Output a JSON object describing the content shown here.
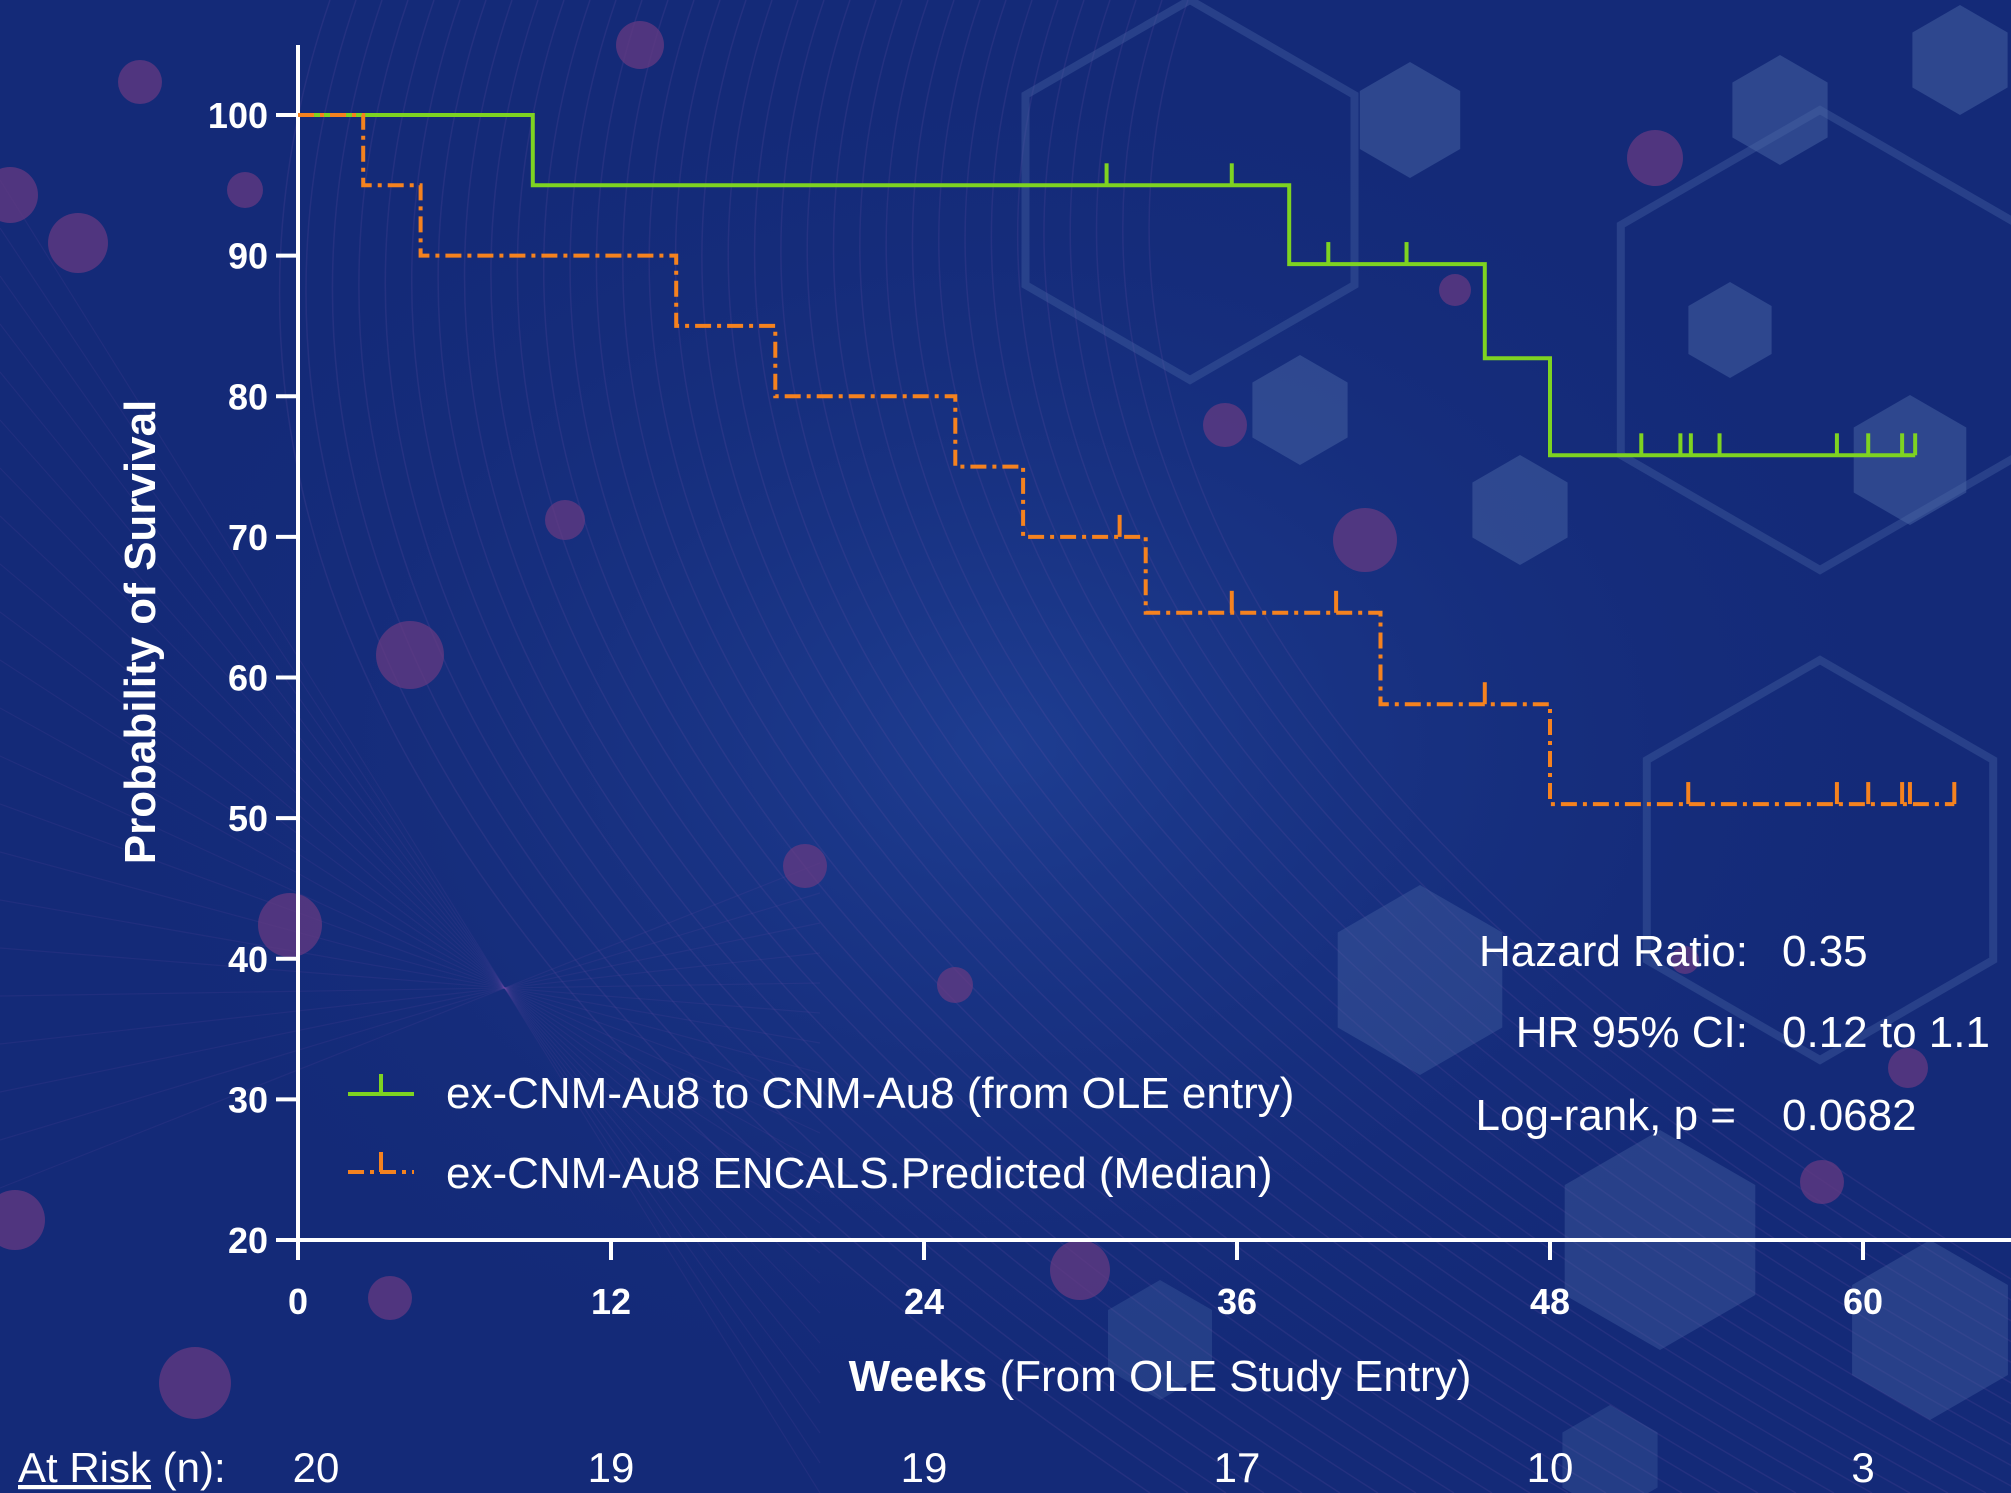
{
  "colors": {
    "background": "#142a78",
    "treated": "#7ed321",
    "predicted": "#f5821f",
    "axis": "#ffffff",
    "decor_hex": "#4d6aa8",
    "decor_dot": "#6a3b82",
    "decor_line": "#7a56b0"
  },
  "chart_data": {
    "type": "line",
    "subtype": "kaplan-meier step",
    "title": "",
    "ylabel": "Probability of Survival",
    "xlabel_bold": "Weeks",
    "xlabel_rest": " (From OLE Study Entry)",
    "xlim": [
      0,
      65
    ],
    "ylim": [
      20,
      100
    ],
    "xticks": [
      0,
      12,
      24,
      36,
      48,
      60
    ],
    "yticks": [
      20,
      30,
      40,
      50,
      60,
      70,
      80,
      90,
      100
    ],
    "grid": false,
    "legend_position": "bottom-left",
    "series": [
      {
        "name": "ex-CNM-Au8 to CNM-Au8 (from OLE entry)",
        "style": "solid",
        "steps": [
          [
            0,
            100
          ],
          [
            9,
            100
          ],
          [
            9,
            95
          ],
          [
            38,
            95
          ],
          [
            38,
            89.4
          ],
          [
            45.5,
            89.4
          ],
          [
            45.5,
            82.7
          ],
          [
            48,
            82.7
          ],
          [
            48,
            75.8
          ],
          [
            62,
            75.8
          ]
        ],
        "censored": [
          [
            31,
            95
          ],
          [
            35.8,
            95
          ],
          [
            39.5,
            89.4
          ],
          [
            42.5,
            89.4
          ],
          [
            51.5,
            75.8
          ],
          [
            53,
            75.8
          ],
          [
            53.4,
            75.8
          ],
          [
            54.5,
            75.8
          ],
          [
            59,
            75.8
          ],
          [
            60.2,
            75.8
          ],
          [
            61.5,
            75.8
          ],
          [
            62,
            75.8
          ]
        ]
      },
      {
        "name": "ex-CNM-Au8 ENCALS.Predicted (Median)",
        "style": "dash-dot",
        "steps": [
          [
            0,
            100
          ],
          [
            2.5,
            100
          ],
          [
            2.5,
            95
          ],
          [
            4.7,
            95
          ],
          [
            4.7,
            90
          ],
          [
            14.5,
            90
          ],
          [
            14.5,
            85
          ],
          [
            18.3,
            85
          ],
          [
            18.3,
            80
          ],
          [
            25.2,
            80
          ],
          [
            25.2,
            75
          ],
          [
            27.8,
            75
          ],
          [
            27.8,
            70
          ],
          [
            32.5,
            70
          ],
          [
            32.5,
            64.6
          ],
          [
            41.5,
            64.6
          ],
          [
            41.5,
            58.1
          ],
          [
            48,
            58.1
          ],
          [
            48,
            51
          ],
          [
            63.5,
            51
          ]
        ],
        "censored": [
          [
            31.5,
            70
          ],
          [
            35.8,
            64.6
          ],
          [
            39.8,
            64.6
          ],
          [
            45.5,
            58.1
          ],
          [
            53.3,
            51
          ],
          [
            59,
            51
          ],
          [
            60.2,
            51
          ],
          [
            61.5,
            51
          ],
          [
            61.8,
            51
          ],
          [
            63.5,
            51
          ]
        ]
      }
    ],
    "stats": [
      {
        "label": "Hazard Ratio:",
        "value": "0.35"
      },
      {
        "label": "HR 95% CI:",
        "value": "0.12 to 1.1"
      },
      {
        "label": "Log-rank, p =",
        "value": "0.0682"
      }
    ],
    "at_risk": {
      "label_underlined": "At Risk",
      "label_rest": " (n):",
      "weeks": [
        0,
        12,
        24,
        36,
        48,
        60
      ],
      "counts": [
        "20",
        "19",
        "19",
        "17",
        "10",
        "3"
      ]
    }
  }
}
